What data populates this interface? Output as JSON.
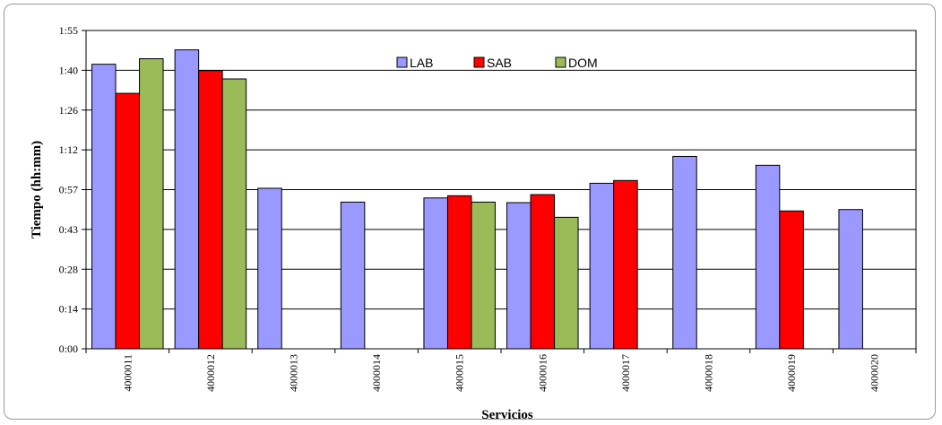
{
  "chart_data": {
    "type": "bar",
    "title": "",
    "xlabel": "Servicios",
    "ylabel": "Tiempo (hh:mm)",
    "y_ticks": [
      "0:00",
      "0:14",
      "0:28",
      "0:43",
      "0:57",
      "1:12",
      "1:26",
      "1:40",
      "1:55"
    ],
    "ylim": [
      0,
      115
    ],
    "grid": "horizontal",
    "legend_position": "top-center",
    "categories": [
      "4000011",
      "4000012",
      "4000013",
      "4000014",
      "4000015",
      "4000016",
      "4000017",
      "4000018",
      "4000019",
      "4000020"
    ],
    "series": [
      {
        "name": "LAB",
        "color": "#9999ff",
        "values": [
          102.8,
          108.0,
          58.0,
          53.0,
          54.5,
          52.8,
          59.8,
          69.5,
          66.3,
          50.3
        ]
      },
      {
        "name": "SAB",
        "color": "#ff0000",
        "values": [
          92.3,
          100.5,
          null,
          null,
          55.3,
          55.7,
          60.8,
          null,
          49.8,
          null
        ]
      },
      {
        "name": "DOM",
        "color": "#9bbb59",
        "values": [
          104.8,
          97.5,
          null,
          null,
          53.0,
          47.5,
          null,
          null,
          null,
          null
        ]
      }
    ]
  }
}
